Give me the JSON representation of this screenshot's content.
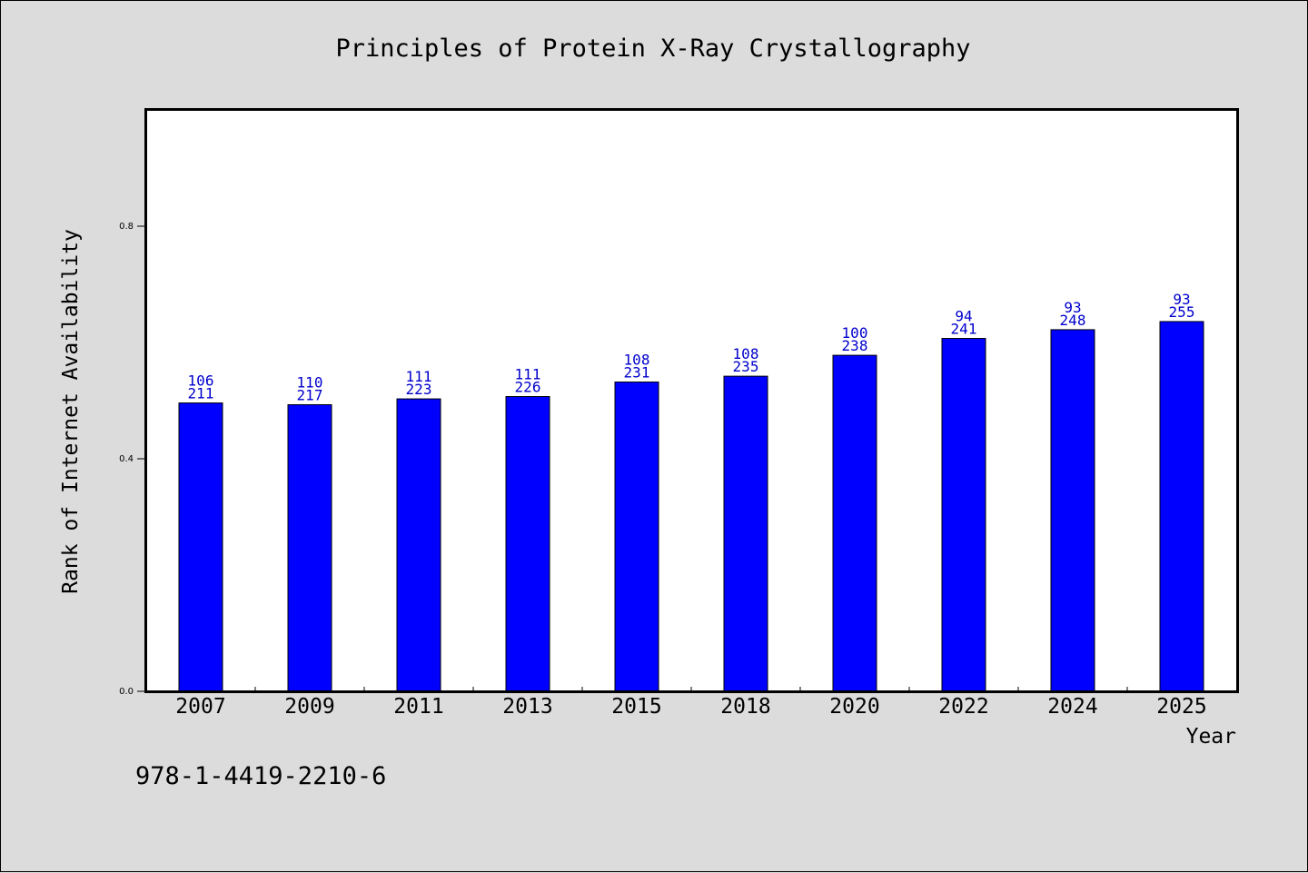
{
  "chart_data": {
    "type": "bar",
    "title": "Principles of Protein X-Ray Crystallography",
    "xlabel": "Year",
    "ylabel": "Rank of Internet Availability",
    "categories": [
      "2007",
      "2009",
      "2011",
      "2013",
      "2015",
      "2018",
      "2020",
      "2022",
      "2024",
      "2025"
    ],
    "values": [
      0.496,
      0.493,
      0.503,
      0.507,
      0.532,
      0.542,
      0.578,
      0.607,
      0.622,
      0.636
    ],
    "label_top": [
      "106",
      "110",
      "111",
      "111",
      "108",
      "108",
      "100",
      "94",
      "93",
      "93"
    ],
    "label_bottom": [
      "211",
      "217",
      "223",
      "226",
      "231",
      "235",
      "238",
      "241",
      "248",
      "255"
    ],
    "ylim": [
      0,
      1.0
    ],
    "yticks": [
      0.0,
      0.4,
      0.8
    ],
    "ytick_labels": [
      "0.0",
      "0.4",
      "0.8"
    ],
    "bar_color": "#0000ff",
    "label_color": "#0000cc",
    "grid": false,
    "legend": "none"
  },
  "footer": {
    "isbn": "978-1-4419-2210-6"
  },
  "colors": {
    "background": "#dcdcdc",
    "plot_background": "#ffffff"
  }
}
